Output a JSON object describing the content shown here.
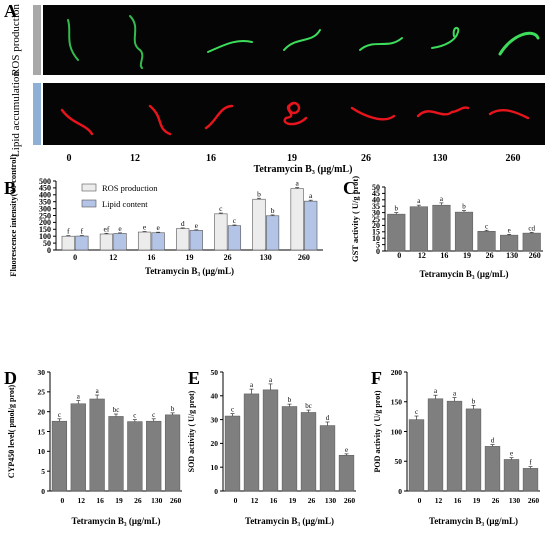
{
  "figure": {
    "panel_letters": [
      "A",
      "B",
      "C",
      "D",
      "E",
      "F"
    ],
    "row_labels": [
      "ROS production",
      "Lipid accumulation"
    ],
    "doses": [
      "0",
      "12",
      "16",
      "19",
      "26",
      "130",
      "260"
    ],
    "axis_title_A": "Tetramycin B₃ (μg/mL)",
    "colors": {
      "background_dark": "#050505",
      "ros_green": "#3ddc5a",
      "lipid_red": "#e8141c",
      "ros_bar": "#ececec",
      "lipid_bar": "#b3c4e6",
      "gray_bar": "#7f7f7f",
      "row_tab_top": "#a8a8a8",
      "row_tab_bottom": "#8fb0d6"
    }
  },
  "chart_data": [
    {
      "id": "B",
      "type": "bar",
      "categories": [
        "0",
        "12",
        "16",
        "19",
        "26",
        "130",
        "260"
      ],
      "series": [
        {
          "name": "ROS production",
          "values": [
            100,
            116,
            130,
            155,
            262,
            368,
            445
          ],
          "errors": [
            4,
            5,
            4,
            5,
            6,
            7,
            8
          ],
          "letters": [
            "f",
            "ef",
            "e",
            "d",
            "c",
            "b",
            "a"
          ]
        },
        {
          "name": "Lipid content",
          "values": [
            101,
            120,
            125,
            142,
            176,
            248,
            354
          ],
          "errors": [
            4,
            4,
            4,
            4,
            5,
            6,
            7
          ],
          "letters": [
            "f",
            "e",
            "e",
            "e",
            "c",
            "b",
            "a"
          ]
        }
      ],
      "xlabel": "Tetramycin B₃ (μg/mL)",
      "ylabel": "Fluorescence intensity(% control)",
      "ylim": [
        0,
        500
      ],
      "yticks": [
        0,
        50,
        100,
        150,
        200,
        250,
        300,
        350,
        400,
        450,
        500
      ],
      "legend": "top-left"
    },
    {
      "id": "C",
      "type": "bar",
      "categories": [
        "0",
        "12",
        "16",
        "19",
        "26",
        "130",
        "260"
      ],
      "values": [
        28.8,
        34.6,
        35.8,
        30.4,
        15.4,
        12.4,
        14.0
      ],
      "errors": [
        1.2,
        1.2,
        1.8,
        1.2,
        0.8,
        0.6,
        0.6
      ],
      "letters": [
        "b",
        "a",
        "a",
        "b",
        "c",
        "e",
        "cd"
      ],
      "xlabel": "Tetramycin B₃ (μg/mL)",
      "ylabel": "GST activity ( U/g prot)",
      "ylim": [
        0,
        50
      ],
      "yticks": [
        0,
        5,
        10,
        15,
        20,
        25,
        30,
        35,
        40,
        45,
        50
      ]
    },
    {
      "id": "D",
      "type": "bar",
      "categories": [
        "0",
        "12",
        "16",
        "19",
        "26",
        "130",
        "260"
      ],
      "values": [
        17.6,
        22.0,
        23.2,
        18.8,
        17.5,
        17.6,
        19.2
      ],
      "errors": [
        0.6,
        0.8,
        1.0,
        0.6,
        0.5,
        0.6,
        0.5
      ],
      "letters": [
        "c",
        "a",
        "a",
        "bc",
        "c",
        "c",
        "b"
      ],
      "xlabel": "Tetramycin B₃ (μg/mL)",
      "ylabel": "CYP450 level( pmol/g prot)",
      "ylim": [
        0,
        30
      ],
      "yticks": [
        0,
        5,
        10,
        15,
        20,
        25,
        30
      ]
    },
    {
      "id": "E",
      "type": "bar",
      "categories": [
        "0",
        "12",
        "16",
        "19",
        "26",
        "130",
        "260"
      ],
      "values": [
        31.5,
        40.8,
        42.5,
        35.5,
        33.0,
        27.5,
        15.0
      ],
      "errors": [
        1.0,
        2.0,
        2.5,
        1.0,
        1.0,
        1.5,
        0.6
      ],
      "letters": [
        "c",
        "a",
        "a",
        "b",
        "bc",
        "d",
        "e"
      ],
      "xlabel": "Tetramycin B₃ (μg/mL)",
      "ylabel": "SOD activity ( U/g prot)",
      "ylim": [
        0,
        50
      ],
      "yticks": [
        0,
        10,
        20,
        30,
        40,
        50
      ]
    },
    {
      "id": "F",
      "type": "bar",
      "categories": [
        "0",
        "12",
        "16",
        "19",
        "26",
        "130",
        "260"
      ],
      "values": [
        120,
        155,
        151,
        138,
        75,
        53,
        38
      ],
      "errors": [
        6,
        6,
        6,
        6,
        3,
        3,
        3
      ],
      "letters": [
        "c",
        "a",
        "a",
        "b",
        "d",
        "e",
        "f"
      ],
      "xlabel": "Tetramycin B₃ (μg/mL)",
      "ylabel": "POD activity ( U/g prot)",
      "ylim": [
        0,
        200
      ],
      "yticks": [
        0,
        50,
        100,
        150,
        200
      ]
    }
  ]
}
